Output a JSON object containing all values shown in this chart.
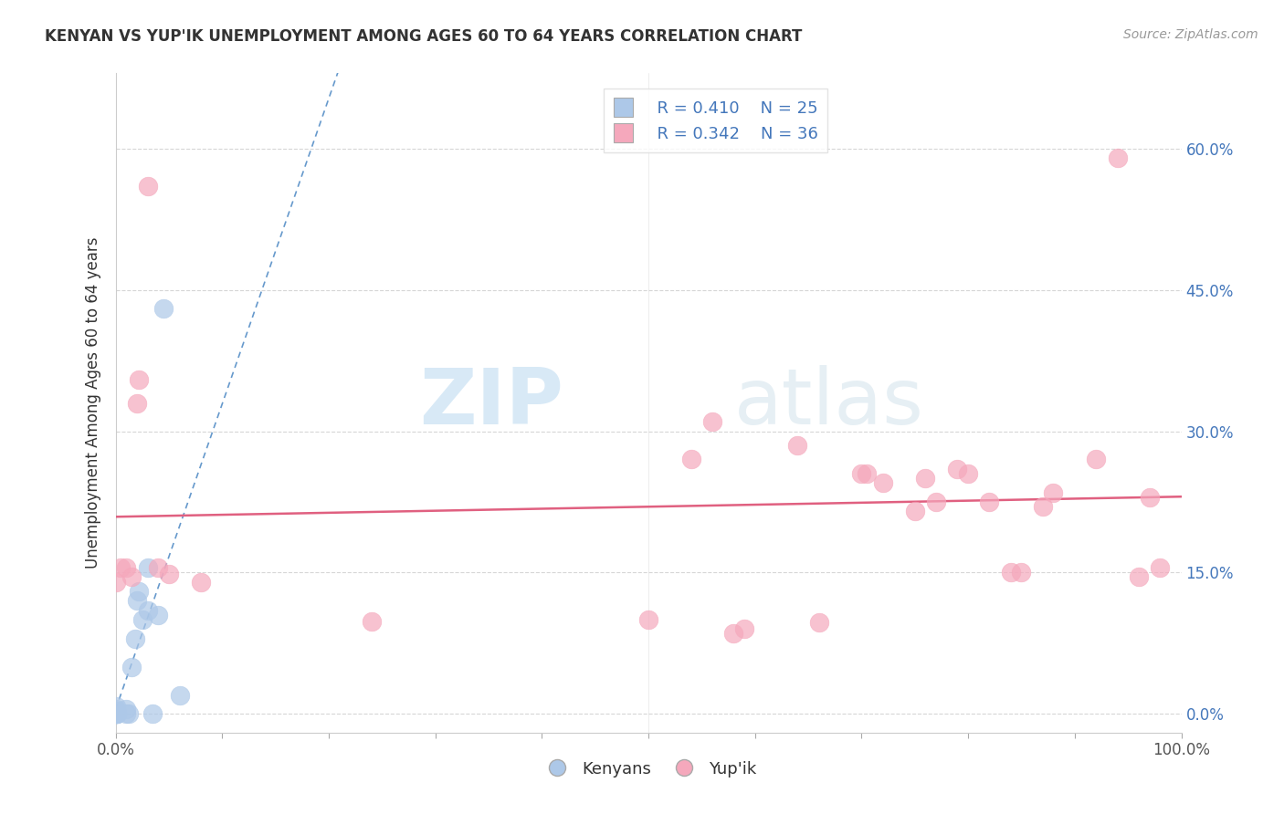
{
  "title": "KENYAN VS YUP'IK UNEMPLOYMENT AMONG AGES 60 TO 64 YEARS CORRELATION CHART",
  "source": "Source: ZipAtlas.com",
  "ylabel": "Unemployment Among Ages 60 to 64 years",
  "xlim": [
    0.0,
    1.0
  ],
  "ylim": [
    -0.02,
    0.68
  ],
  "yplot_min": 0.0,
  "yplot_max": 0.65,
  "yticks": [
    0.0,
    0.15,
    0.3,
    0.45,
    0.6
  ],
  "yticklabels": [
    "0.0%",
    "15.0%",
    "30.0%",
    "45.0%",
    "60.0%"
  ],
  "legend_R_kenyan": "R = 0.410",
  "legend_N_kenyan": "N = 25",
  "legend_R_yupik": "R = 0.342",
  "legend_N_yupik": "N = 36",
  "kenyan_color": "#adc8e8",
  "yupik_color": "#f5a8bc",
  "kenyan_line_color": "#6699cc",
  "yupik_line_color": "#e06080",
  "background_color": "#ffffff",
  "label_color": "#4477bb",
  "kenyan_scatter": [
    [
      0.0,
      0.0
    ],
    [
      0.0,
      0.0
    ],
    [
      0.0,
      0.0
    ],
    [
      0.0,
      0.0
    ],
    [
      0.0,
      0.0
    ],
    [
      0.0,
      0.003
    ],
    [
      0.0,
      0.003
    ],
    [
      0.0,
      0.005
    ],
    [
      0.0,
      0.008
    ],
    [
      0.001,
      0.0
    ],
    [
      0.001,
      0.0
    ],
    [
      0.01,
      0.0
    ],
    [
      0.01,
      0.005
    ],
    [
      0.012,
      0.0
    ],
    [
      0.015,
      0.05
    ],
    [
      0.018,
      0.08
    ],
    [
      0.02,
      0.12
    ],
    [
      0.022,
      0.13
    ],
    [
      0.025,
      0.1
    ],
    [
      0.03,
      0.11
    ],
    [
      0.03,
      0.155
    ],
    [
      0.035,
      0.0
    ],
    [
      0.04,
      0.105
    ],
    [
      0.045,
      0.43
    ],
    [
      0.06,
      0.02
    ]
  ],
  "yupik_scatter": [
    [
      0.0,
      0.14
    ],
    [
      0.005,
      0.155
    ],
    [
      0.01,
      0.155
    ],
    [
      0.015,
      0.145
    ],
    [
      0.02,
      0.33
    ],
    [
      0.022,
      0.355
    ],
    [
      0.03,
      0.56
    ],
    [
      0.04,
      0.155
    ],
    [
      0.05,
      0.148
    ],
    [
      0.08,
      0.14
    ],
    [
      0.24,
      0.098
    ],
    [
      0.5,
      0.1
    ],
    [
      0.54,
      0.27
    ],
    [
      0.56,
      0.31
    ],
    [
      0.58,
      0.085
    ],
    [
      0.59,
      0.09
    ],
    [
      0.64,
      0.285
    ],
    [
      0.66,
      0.097
    ],
    [
      0.7,
      0.255
    ],
    [
      0.705,
      0.255
    ],
    [
      0.72,
      0.245
    ],
    [
      0.75,
      0.215
    ],
    [
      0.76,
      0.25
    ],
    [
      0.77,
      0.225
    ],
    [
      0.79,
      0.26
    ],
    [
      0.8,
      0.255
    ],
    [
      0.82,
      0.225
    ],
    [
      0.84,
      0.15
    ],
    [
      0.85,
      0.15
    ],
    [
      0.87,
      0.22
    ],
    [
      0.88,
      0.235
    ],
    [
      0.92,
      0.27
    ],
    [
      0.94,
      0.59
    ],
    [
      0.96,
      0.145
    ],
    [
      0.97,
      0.23
    ],
    [
      0.98,
      0.155
    ]
  ]
}
